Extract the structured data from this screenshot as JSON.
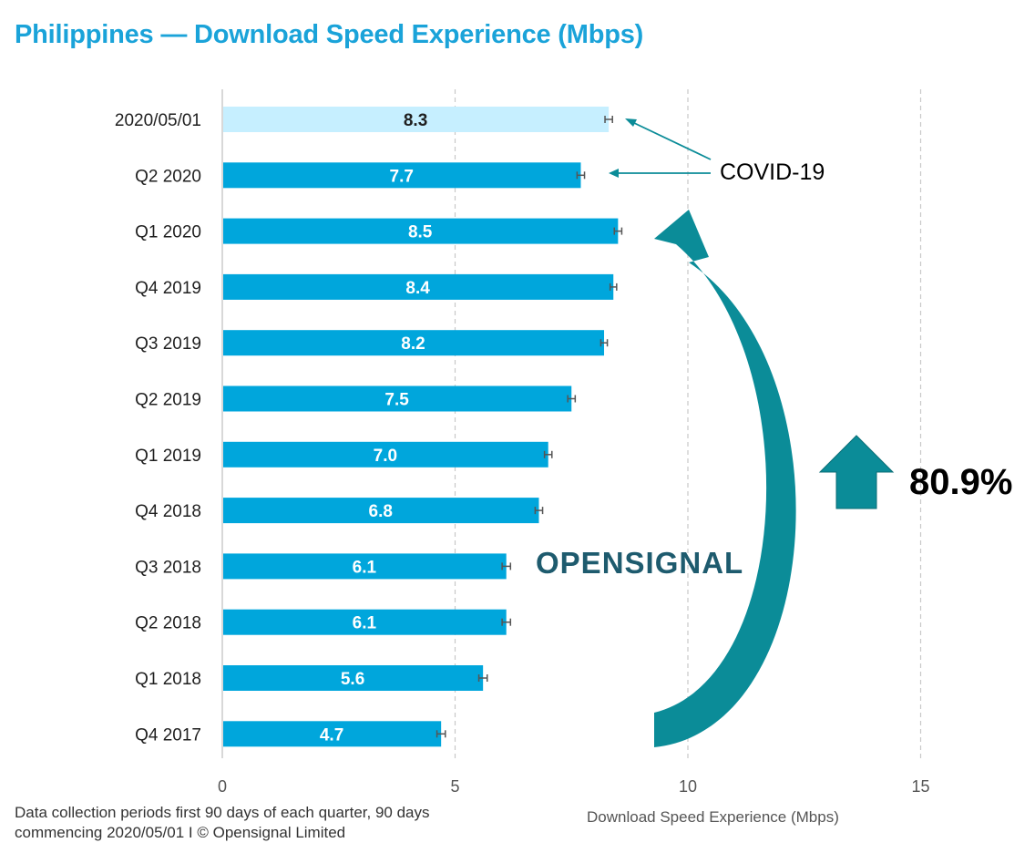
{
  "title": "Philippines — Download Speed Experience (Mbps)",
  "chart_data": {
    "type": "bar",
    "orientation": "horizontal",
    "categories": [
      "2020/05/01",
      "Q2 2020",
      "Q1 2020",
      "Q4 2019",
      "Q3 2019",
      "Q2 2019",
      "Q1 2019",
      "Q4 2018",
      "Q3 2018",
      "Q2 2018",
      "Q1 2018",
      "Q4 2017"
    ],
    "values": [
      8.3,
      7.7,
      8.5,
      8.4,
      8.2,
      7.5,
      7.0,
      6.8,
      6.1,
      6.1,
      5.6,
      4.7
    ],
    "value_labels": [
      "8.3",
      "7.7",
      "8.5",
      "8.4",
      "8.2",
      "7.5",
      "7.0",
      "6.8",
      "6.1",
      "6.1",
      "5.6",
      "4.7"
    ],
    "error_halfwidth": [
      0.08,
      0.08,
      0.08,
      0.07,
      0.07,
      0.08,
      0.08,
      0.08,
      0.09,
      0.09,
      0.09,
      0.09
    ],
    "xlabel": "Download Speed Experience (Mbps)",
    "xlim": [
      0,
      15
    ],
    "xticks": [
      0,
      5,
      10,
      15
    ],
    "xtick_labels": [
      "0",
      "5",
      "10",
      "15"
    ],
    "grid": "vertical dashed",
    "colors": {
      "bar": "#00a6dc",
      "highlight_bar": "#c6efff",
      "arrow": "#0b8c98",
      "grid": "#c8c8c8",
      "error_bar": "#555555"
    },
    "annotations": {
      "covid_label": "COVID-19",
      "growth_label": "80.9%"
    }
  },
  "footnote_lines": [
    "Data collection periods first 90 days of each quarter, 90 days",
    "commencing 2020/05/01 I © Opensignal Limited"
  ],
  "logo_text": "OPENSIGNAL"
}
